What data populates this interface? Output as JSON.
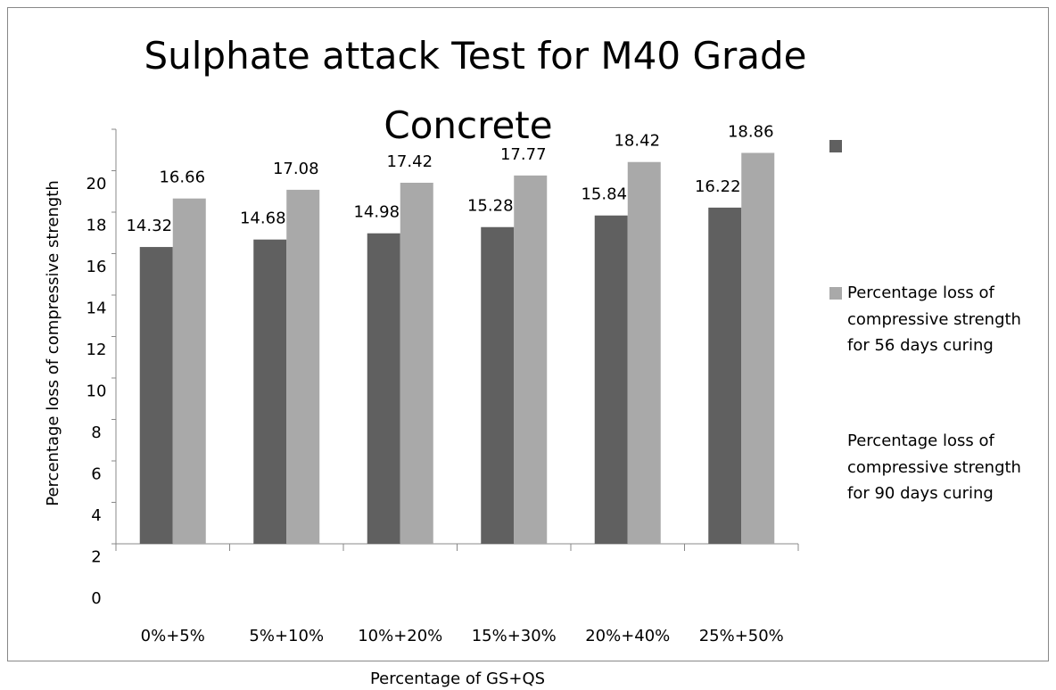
{
  "chart_data": {
    "type": "bar",
    "title": "Sulphate attack Test for M40 Grade Concrete",
    "x_label": "Percentage of GS+QS",
    "y_label": "Percentage loss of compressive strength",
    "categories": [
      "0%+5%",
      "5%+10%",
      "10%+20%",
      "15%+30%",
      "20%+40%",
      "25%+50%"
    ],
    "series": [
      {
        "color": "#606060",
        "values": [
          14.32,
          14.68,
          14.98,
          15.28,
          15.84,
          16.22
        ]
      },
      {
        "name": "Percentage loss of compressive strength for 56 days curing",
        "color": "#a9a9a9",
        "values": [
          16.66,
          17.08,
          17.42,
          17.77,
          18.42,
          18.86
        ]
      }
    ],
    "legend_extra": "Percentage loss of compressive strength for 90 days curing",
    "ylim": [
      0,
      20
    ],
    "yticks": [
      0,
      2,
      4,
      6,
      8,
      10,
      12,
      14,
      16,
      18,
      20
    ]
  }
}
